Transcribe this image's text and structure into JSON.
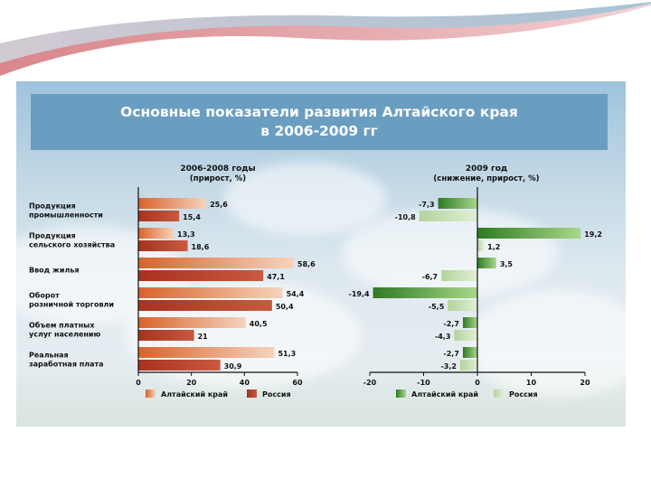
{
  "slide": {
    "title_line1": "Основные показатели развития Алтайского края",
    "title_line2": "в 2006-2009 гг"
  },
  "chart_data": [
    {
      "type": "bar",
      "orientation": "horizontal",
      "title_line1": "2006-2008 годы",
      "title_line2": "(прирост, %)",
      "categories": [
        [
          "Продукция",
          "промышленности"
        ],
        [
          "Продукция",
          "сельского хозяйства"
        ],
        [
          "Ввод жилья"
        ],
        [
          "Оборот",
          "розничной торговли"
        ],
        [
          "Объем платных",
          "услуг населению"
        ],
        [
          "Реальная",
          "заработная плата"
        ]
      ],
      "series": [
        {
          "name": "Алтайский край",
          "values": [
            25.6,
            13.3,
            58.6,
            54.4,
            40.5,
            51.3
          ],
          "labels": [
            "25,6",
            "13,3",
            "58,6",
            "54,4",
            "40,5",
            "51,3"
          ]
        },
        {
          "name": "Россия",
          "values": [
            15.4,
            18.6,
            47.1,
            50.4,
            21,
            30.9
          ],
          "labels": [
            "15,4",
            "18,6",
            "47,1",
            "50,4",
            "21",
            "30,9"
          ]
        }
      ],
      "xlim": [
        0,
        60
      ],
      "ticks": [
        0,
        20,
        40,
        60
      ],
      "legend_position": "bottom",
      "colors": {
        "altai": "#d9632a",
        "russia": "#a8321f"
      }
    },
    {
      "type": "bar",
      "orientation": "horizontal",
      "title_line1": "2009 год",
      "title_line2": "(снижение, прирост, %)",
      "series": [
        {
          "name": "Алтайский край",
          "values": [
            -7.3,
            19.2,
            3.5,
            -19.4,
            -2.7,
            -2.7
          ],
          "labels": [
            "-7,3",
            "19,2",
            "3,5",
            "-19,4",
            "-2,7",
            "-2,7"
          ]
        },
        {
          "name": "Россия",
          "values": [
            -10.8,
            1.2,
            -6.7,
            -5.5,
            -4.3,
            -3.2
          ],
          "labels": [
            "-10,8",
            "1,2",
            "-6,7",
            "-5,5",
            "-4,3",
            "-3,2"
          ]
        }
      ],
      "xlim": [
        -20,
        20
      ],
      "ticks": [
        -20,
        -10,
        0,
        10,
        20
      ],
      "legend_position": "bottom",
      "colors": {
        "altai": "#3d8a2c",
        "russia": "#c4dcb0"
      }
    }
  ]
}
